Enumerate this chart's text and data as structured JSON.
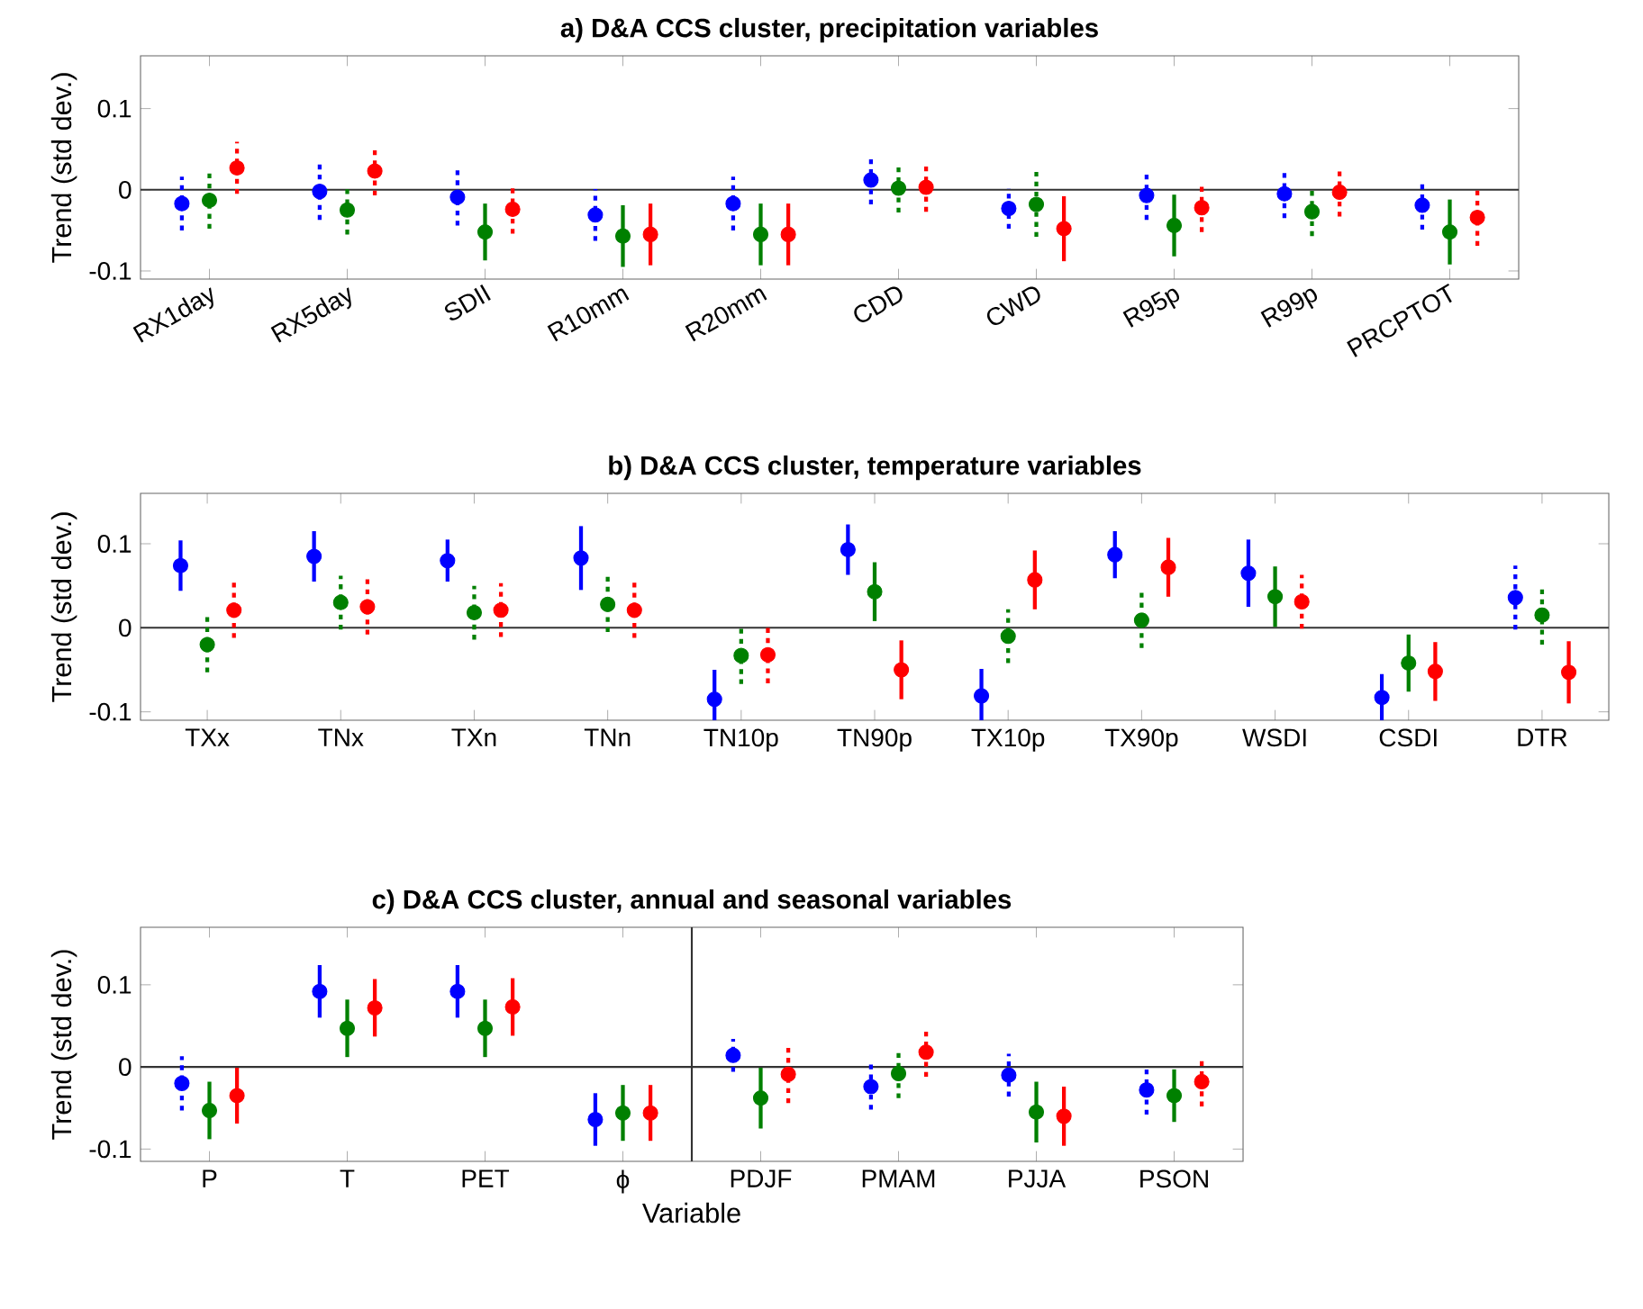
{
  "chart_data": [
    {
      "type": "scatter",
      "title": "a) D&A CCS cluster, precipitation variables",
      "ylabel": "Trend (std dev.)",
      "categories": [
        "RX1day",
        "RX5day",
        "SDII",
        "R10mm",
        "R20mm",
        "CDD",
        "CWD",
        "R95p",
        "R99p",
        "PRCPTOT"
      ],
      "series": [
        {
          "color": "#0000ff",
          "values": [
            -0.017,
            -0.002,
            -0.009,
            -0.031,
            -0.017,
            0.012,
            -0.023,
            -0.007,
            -0.005,
            -0.019
          ],
          "errors": [
            0.033,
            0.035,
            0.035,
            0.032,
            0.033,
            0.03,
            0.025,
            0.03,
            0.03,
            0.03
          ]
        },
        {
          "color": "#008000",
          "values": [
            -0.013,
            -0.025,
            -0.052,
            -0.057,
            -0.055,
            0.002,
            -0.018,
            -0.044,
            -0.027,
            -0.052
          ],
          "errors": [
            0.035,
            0.03,
            0.035,
            0.038,
            0.038,
            0.03,
            0.04,
            0.038,
            0.03,
            0.04
          ]
        },
        {
          "color": "#ff0000",
          "values": [
            0.027,
            0.023,
            -0.024,
            -0.055,
            -0.055,
            0.003,
            -0.048,
            -0.022,
            -0.003,
            -0.034
          ],
          "errors": [
            0.032,
            0.03,
            0.03,
            0.038,
            0.038,
            0.03,
            0.04,
            0.03,
            0.03,
            0.035
          ]
        }
      ],
      "ylim": [
        -0.11,
        0.165
      ],
      "yticks": [
        -0.1,
        0,
        0.1
      ],
      "marker": "circle",
      "grid": false,
      "ref_lines": [
        {
          "axis": "y",
          "value": 0
        }
      ]
    },
    {
      "type": "scatter",
      "title": "b) D&A CCS cluster, temperature variables",
      "ylabel": "Trend (std dev.)",
      "categories": [
        "TXx",
        "TNx",
        "TXn",
        "TNn",
        "TN10p",
        "TN90p",
        "TX10p",
        "TX90p",
        "WSDI",
        "CSDI",
        "DTR"
      ],
      "series": [
        {
          "color": "#0000ff",
          "values": [
            0.074,
            0.085,
            0.08,
            0.083,
            -0.085,
            0.093,
            -0.081,
            0.087,
            0.065,
            -0.083,
            0.036
          ],
          "errors": [
            0.03,
            0.03,
            0.025,
            0.038,
            0.035,
            0.03,
            0.032,
            0.028,
            0.04,
            0.028,
            0.038
          ]
        },
        {
          "color": "#008000",
          "values": [
            -0.02,
            0.03,
            0.018,
            0.028,
            -0.033,
            0.043,
            -0.01,
            0.009,
            0.037,
            -0.042,
            0.015
          ],
          "errors": [
            0.033,
            0.032,
            0.032,
            0.033,
            0.034,
            0.035,
            0.032,
            0.033,
            0.036,
            0.034,
            0.035
          ]
        },
        {
          "color": "#ff0000",
          "values": [
            0.021,
            0.025,
            0.021,
            0.021,
            -0.032,
            -0.05,
            0.057,
            0.072,
            0.031,
            -0.052,
            -0.053
          ],
          "errors": [
            0.033,
            0.033,
            0.032,
            0.033,
            0.034,
            0.035,
            0.035,
            0.035,
            0.032,
            0.035,
            0.037
          ]
        }
      ],
      "ylim": [
        -0.11,
        0.16
      ],
      "yticks": [
        -0.1,
        0,
        0.1
      ],
      "marker": "circle",
      "grid": false,
      "ref_lines": [
        {
          "axis": "y",
          "value": 0
        }
      ]
    },
    {
      "type": "scatter",
      "title": "c) D&A CCS cluster, annual and seasonal variables",
      "xlabel": "Variable",
      "ylabel": "Trend (std dev.)",
      "categories": [
        "P",
        "T",
        "PET",
        "ϕ",
        "PDJF",
        "PMAM",
        "PJJA",
        "PSON"
      ],
      "series": [
        {
          "color": "#0000ff",
          "values": [
            -0.02,
            0.092,
            0.092,
            -0.064,
            0.014,
            -0.024,
            -0.01,
            -0.028
          ],
          "errors": [
            0.033,
            0.032,
            0.032,
            0.032,
            0.02,
            0.028,
            0.026,
            0.03
          ]
        },
        {
          "color": "#008000",
          "values": [
            -0.053,
            0.047,
            0.047,
            -0.056,
            -0.038,
            -0.008,
            -0.055,
            -0.035
          ],
          "errors": [
            0.035,
            0.035,
            0.035,
            0.034,
            0.037,
            0.03,
            0.037,
            0.032
          ]
        },
        {
          "color": "#ff0000",
          "values": [
            -0.035,
            0.072,
            0.073,
            -0.056,
            -0.009,
            0.018,
            -0.06,
            -0.018
          ],
          "errors": [
            0.034,
            0.035,
            0.035,
            0.034,
            0.035,
            0.03,
            0.036,
            0.03
          ]
        }
      ],
      "ylim": [
        -0.115,
        0.17
      ],
      "yticks": [
        -0.1,
        0,
        0.1
      ],
      "marker": "circle",
      "grid": false,
      "ref_lines": [
        {
          "axis": "y",
          "value": 0
        }
      ]
    }
  ]
}
